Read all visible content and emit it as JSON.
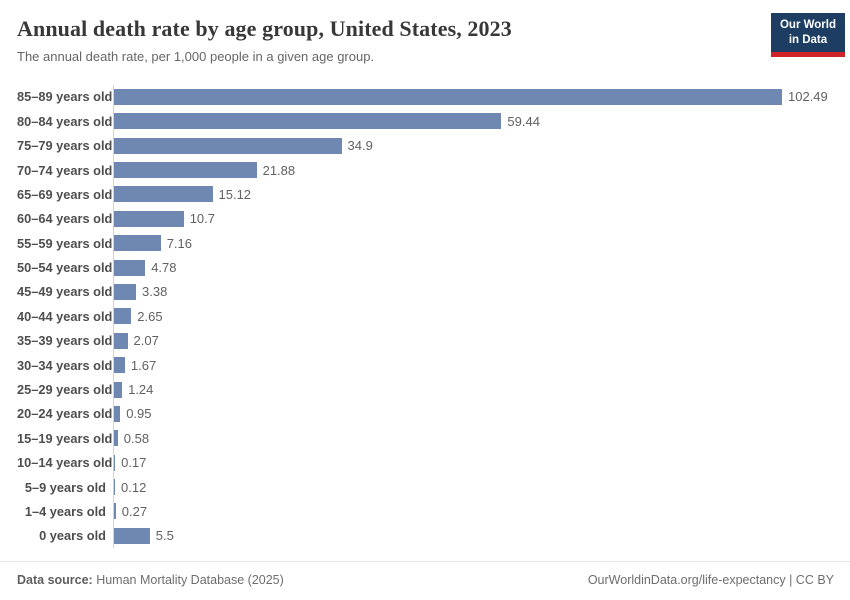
{
  "header": {
    "title": "Annual death rate by age group, United States, 2023",
    "subtitle": "The annual death rate, per 1,000 people in a given age group.",
    "logo": {
      "line1": "Our World",
      "line2": "in Data"
    }
  },
  "chart_data": {
    "type": "bar",
    "orientation": "horizontal",
    "title": "Annual death rate by age group, United States, 2023",
    "subtitle": "The annual death rate, per 1,000 people in a given age group.",
    "categories": [
      "85–89 years old",
      "80–84 years old",
      "75–79 years old",
      "70–74 years old",
      "65–69 years old",
      "60–64 years old",
      "55–59 years old",
      "50–54 years old",
      "45–49 years old",
      "40–44 years old",
      "35–39 years old",
      "30–34 years old",
      "25–29 years old",
      "20–24 years old",
      "15–19 years old",
      "10–14 years old",
      "5–9 years old",
      "1–4 years old",
      "0 years old"
    ],
    "values": [
      102.49,
      59.44,
      34.9,
      21.88,
      15.12,
      10.7,
      7.16,
      4.78,
      3.38,
      2.65,
      2.07,
      1.67,
      1.24,
      0.95,
      0.58,
      0.17,
      0.12,
      0.27,
      5.5
    ],
    "value_labels": [
      "102.49",
      "59.44",
      "34.9",
      "21.88",
      "15.12",
      "10.7",
      "7.16",
      "4.78",
      "3.38",
      "2.65",
      "2.07",
      "1.67",
      "1.24",
      "0.95",
      "0.58",
      "0.17",
      "0.12",
      "0.27",
      "5.5"
    ],
    "xlabel": "",
    "ylabel": "",
    "xlim": [
      0,
      102.49
    ],
    "grid": false,
    "legend": "none",
    "bar_color": "#6f88b1"
  },
  "footer": {
    "source_label": "Data source:",
    "source_text": " Human Mortality Database (2025)",
    "right_text": "OurWorldinData.org/life-expectancy | CC BY"
  },
  "colors": {
    "bar": "#6f88b1",
    "axis_line": "#d0d3d8",
    "title_text": "#383838",
    "subtitle_text": "#666666",
    "label_text": "#4e4e4e",
    "value_text": "#616161",
    "logo_bg": "#1d3d63",
    "logo_stripe": "#cf2427"
  }
}
